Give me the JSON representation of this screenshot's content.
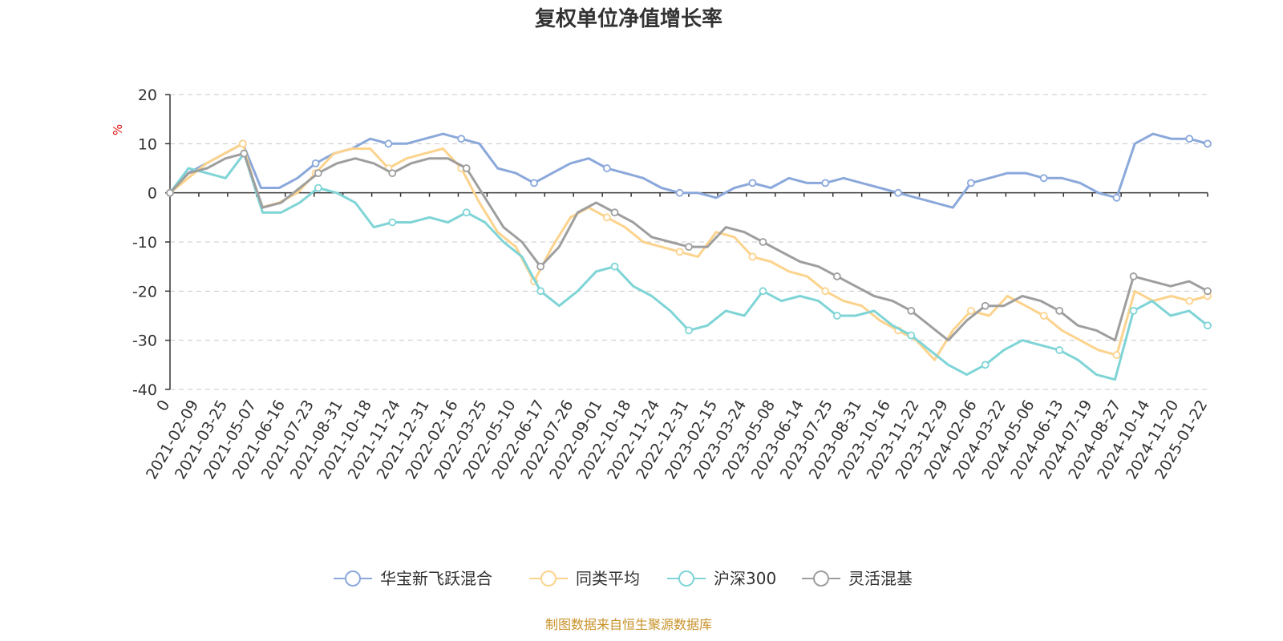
{
  "chart_data": {
    "type": "line",
    "title": "复权单位净值增长率",
    "ylabel": "%",
    "xlabel": "",
    "ylim": [
      -40,
      20
    ],
    "yticks": [
      20,
      10,
      0,
      -10,
      -20,
      -30,
      -40
    ],
    "grid": true,
    "legend_position": "bottom",
    "source": "制图数据来自恒生聚源数据库",
    "x_tick_labels": [
      "0",
      "2021-02-09",
      "2021-03-25",
      "2021-05-07",
      "2021-06-16",
      "2021-07-23",
      "2021-08-31",
      "2021-10-18",
      "2021-11-24",
      "2021-12-31",
      "2022-02-16",
      "2022-03-25",
      "2022-05-10",
      "2022-06-17",
      "2022-07-26",
      "2022-09-01",
      "2022-10-18",
      "2022-11-24",
      "2022-12-31",
      "2023-02-15",
      "2023-03-24",
      "2023-05-08",
      "2023-06-14",
      "2023-07-25",
      "2023-08-31",
      "2023-10-16",
      "2023-11-22",
      "2023-12-29",
      "2024-02-06",
      "2024-03-22",
      "2024-05-06",
      "2024-06-13",
      "2024-07-19",
      "2024-08-27",
      "2024-10-14",
      "2024-11-20",
      "2025-01-22"
    ],
    "series": [
      {
        "name": "华宝新飞跃混合",
        "color": "#8ba8db",
        "values": [
          0,
          4,
          6,
          8,
          10,
          1,
          1,
          3,
          6,
          8,
          9,
          11,
          10,
          10,
          11,
          12,
          11,
          10,
          5,
          4,
          2,
          4,
          6,
          7,
          5,
          4,
          3,
          1,
          0,
          0,
          -1,
          1,
          2,
          1,
          3,
          2,
          2,
          3,
          2,
          1,
          0,
          -1,
          -2,
          -3,
          2,
          3,
          4,
          4,
          3,
          3,
          2,
          0,
          -1,
          10,
          12,
          11,
          11,
          10
        ]
      },
      {
        "name": "同类平均",
        "color": "#fcd38d",
        "values": [
          0,
          3,
          6,
          8,
          10,
          -3,
          -2,
          0,
          4,
          8,
          9,
          9,
          5,
          7,
          8,
          9,
          5,
          -2,
          -8,
          -11,
          -18,
          -11,
          -5,
          -3,
          -5,
          -7,
          -10,
          -11,
          -12,
          -13,
          -8,
          -9,
          -13,
          -14,
          -16,
          -17,
          -20,
          -22,
          -23,
          -26,
          -28,
          -30,
          -34,
          -28,
          -24,
          -25,
          -21,
          -23,
          -25,
          -28,
          -30,
          -32,
          -33,
          -20,
          -22,
          -21,
          -22,
          -21
        ]
      },
      {
        "name": "沪深300",
        "color": "#7fd4d6",
        "values": [
          0,
          5,
          4,
          3,
          8,
          -4,
          -4,
          -2,
          1,
          0,
          -2,
          -7,
          -6,
          -6,
          -5,
          -6,
          -4,
          -6,
          -10,
          -13,
          -20,
          -23,
          -20,
          -16,
          -15,
          -19,
          -21,
          -24,
          -28,
          -27,
          -24,
          -25,
          -20,
          -22,
          -21,
          -22,
          -25,
          -25,
          -24,
          -27,
          -29,
          -32,
          -35,
          -37,
          -35,
          -32,
          -30,
          -31,
          -32,
          -34,
          -37,
          -38,
          -24,
          -22,
          -25,
          -24,
          -27
        ]
      },
      {
        "name": "灵活混基",
        "color": "#9e9e9e",
        "values": [
          0,
          4,
          5,
          7,
          8,
          -3,
          -2,
          1,
          4,
          6,
          7,
          6,
          4,
          6,
          7,
          7,
          5,
          -1,
          -7,
          -10,
          -15,
          -11,
          -4,
          -2,
          -4,
          -6,
          -9,
          -10,
          -11,
          -11,
          -7,
          -8,
          -10,
          -12,
          -14,
          -15,
          -17,
          -19,
          -21,
          -22,
          -24,
          -27,
          -30,
          -26,
          -23,
          -23,
          -21,
          -22,
          -24,
          -27,
          -28,
          -30,
          -17,
          -18,
          -19,
          -18,
          -20
        ]
      }
    ]
  }
}
